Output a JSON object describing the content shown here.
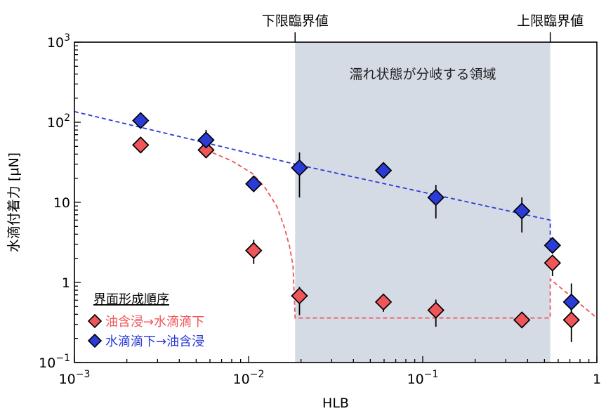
{
  "chart_data": {
    "type": "scatter",
    "x_scale": "log",
    "y_scale": "log",
    "xlim": [
      0.001,
      1
    ],
    "ylim": [
      0.1,
      1000
    ],
    "xlabel": "HLB",
    "ylabel": "水滴付着力 [μN]",
    "x_ticks": [
      {
        "value": 0.001,
        "base": "10",
        "exp": "−3"
      },
      {
        "value": 0.01,
        "base": "10",
        "exp": "−2"
      },
      {
        "value": 0.1,
        "base": "10",
        "exp": "−1"
      },
      {
        "value": 1,
        "base": "1",
        "exp": ""
      }
    ],
    "y_ticks": [
      {
        "value": 0.1,
        "base": "10",
        "exp": "−1"
      },
      {
        "value": 1,
        "base": "1",
        "exp": ""
      },
      {
        "value": 10,
        "base": "10",
        "exp": ""
      },
      {
        "value": 100,
        "base": "10",
        "exp": "2"
      },
      {
        "value": 1000,
        "base": "10",
        "exp": "3"
      }
    ],
    "top_markers": [
      {
        "label": "下限臨界値",
        "x": 0.0185
      },
      {
        "label": "上限臨界値",
        "x": 0.54
      }
    ],
    "shaded_region": {
      "label": "濡れ状態が分岐する領域",
      "x_range": [
        0.0185,
        0.54
      ],
      "color": "#d5dbe5"
    },
    "legend": {
      "title": "界面形成順序",
      "position": "bottom-left"
    },
    "series": [
      {
        "name": "油含浸→水滴滴下",
        "color": "#f0555a",
        "points": [
          {
            "x": 0.0024,
            "y": 52,
            "err": [
              52,
              52
            ]
          },
          {
            "x": 0.0057,
            "y": 45,
            "err": [
              40,
              52
            ]
          },
          {
            "x": 0.0107,
            "y": 2.5,
            "err": [
              1.7,
              3.4
            ]
          },
          {
            "x": 0.0196,
            "y": 0.68,
            "err": [
              0.39,
              0.88
            ]
          },
          {
            "x": 0.0595,
            "y": 0.57,
            "err": [
              0.43,
              0.72
            ]
          },
          {
            "x": 0.119,
            "y": 0.45,
            "err": [
              0.28,
              0.61
            ]
          },
          {
            "x": 0.371,
            "y": 0.34,
            "err": [
              0.34,
              0.34
            ]
          },
          {
            "x": 0.556,
            "y": 1.75,
            "err": [
              1.2,
              2.1
            ]
          },
          {
            "x": 0.714,
            "y": 0.34,
            "err": [
              0.18,
              0.47
            ]
          }
        ]
      },
      {
        "name": "水滴滴下→油含浸",
        "color": "#2b3bd6",
        "points": [
          {
            "x": 0.0024,
            "y": 105,
            "err": [
              86,
              116
            ]
          },
          {
            "x": 0.0057,
            "y": 60,
            "err": [
              50,
              80
            ]
          },
          {
            "x": 0.0107,
            "y": 17,
            "err": [
              15,
              19
            ]
          },
          {
            "x": 0.0196,
            "y": 27,
            "err": [
              11.5,
              42
            ]
          },
          {
            "x": 0.0595,
            "y": 25,
            "err": [
              25,
              25
            ]
          },
          {
            "x": 0.119,
            "y": 11.5,
            "err": [
              6.3,
              16.5
            ]
          },
          {
            "x": 0.371,
            "y": 7.8,
            "err": [
              4.2,
              11.5
            ]
          },
          {
            "x": 0.556,
            "y": 2.9,
            "err": [
              2.5,
              3.2
            ]
          },
          {
            "x": 0.714,
            "y": 0.57,
            "err": [
              0.37,
              0.97
            ]
          }
        ]
      }
    ],
    "trend_lines": [
      {
        "color": "#2b3bd6",
        "points": [
          [
            0.001,
            136
          ],
          [
            0.0185,
            30
          ],
          [
            0.54,
            6
          ],
          [
            0.54,
            2.95
          ]
        ]
      },
      {
        "color": "#f0555a",
        "points": [
          [
            0.0057,
            45
          ],
          [
            0.008,
            33
          ],
          [
            0.0105,
            23
          ],
          [
            0.0125,
            15
          ],
          [
            0.0145,
            9
          ],
          [
            0.016,
            5
          ],
          [
            0.0172,
            2.8
          ],
          [
            0.018,
            1.6
          ],
          [
            0.0185,
            0.36
          ],
          [
            0.54,
            0.36
          ],
          [
            0.54,
            1.1
          ],
          [
            1,
            0.36
          ]
        ]
      }
    ]
  }
}
